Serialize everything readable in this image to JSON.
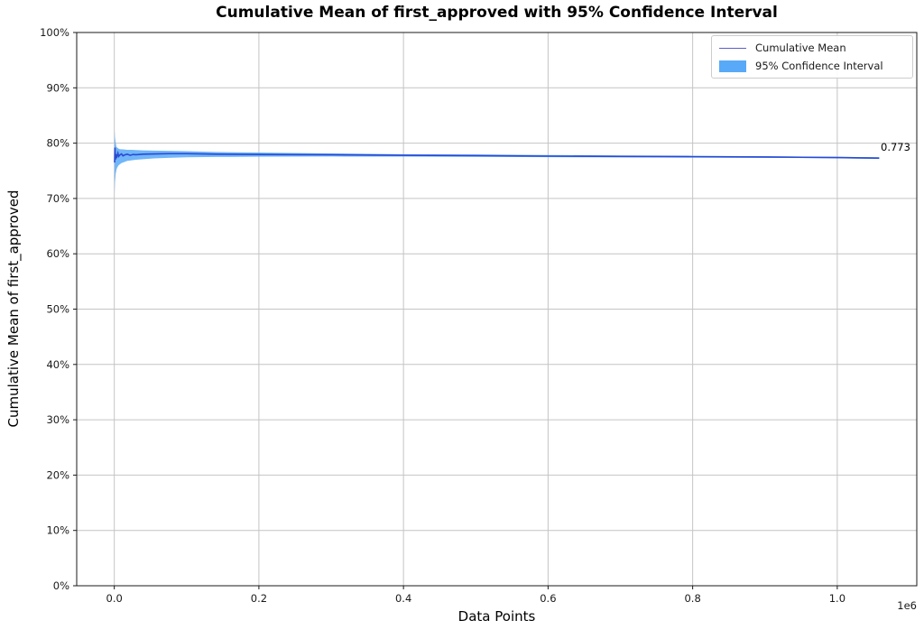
{
  "chart": {
    "title": "Cumulative Mean of first_approved with 95% Confidence Interval",
    "xlabel": "Data Points",
    "ylabel": "Cumulative Mean of first_approved",
    "offset_text": "1e6",
    "annotation": "0.773",
    "legend": {
      "mean_label": "Cumulative Mean",
      "ci_label": "95% Confidence Interval"
    }
  },
  "colors": {
    "mean_line": "#2a4ad4",
    "ci_fill": "#58a9f7",
    "grid": "#c4c4c4",
    "spine": "#1a1a1a",
    "tick_label": "#1a1a1a"
  },
  "chart_data": {
    "type": "line",
    "title": "Cumulative Mean of first_approved with 95% Confidence Interval",
    "xlabel": "Data Points",
    "ylabel": "Cumulative Mean of first_approved",
    "x_unit": "millions of data points (axis offset text 1e6)",
    "y_unit": "percent",
    "xlim": [
      -0.052,
      1.11
    ],
    "ylim": [
      0,
      100
    ],
    "grid": true,
    "legend_position": "upper right",
    "legend_entries": [
      "Cumulative Mean",
      "95% Confidence Interval"
    ],
    "x_ticks": [
      {
        "label": "0.0",
        "value": 0.0
      },
      {
        "label": "0.2",
        "value": 0.2
      },
      {
        "label": "0.4",
        "value": 0.4
      },
      {
        "label": "0.6",
        "value": 0.6
      },
      {
        "label": "0.8",
        "value": 0.8
      },
      {
        "label": "1.0",
        "value": 1.0
      }
    ],
    "y_ticks": [
      {
        "label": "0%",
        "value": 0
      },
      {
        "label": "10%",
        "value": 10
      },
      {
        "label": "20%",
        "value": 20
      },
      {
        "label": "30%",
        "value": 30
      },
      {
        "label": "40%",
        "value": 40
      },
      {
        "label": "50%",
        "value": 50
      },
      {
        "label": "60%",
        "value": 60
      },
      {
        "label": "70%",
        "value": 70
      },
      {
        "label": "80%",
        "value": 80
      },
      {
        "label": "90%",
        "value": 90
      },
      {
        "label": "100%",
        "value": 100
      }
    ],
    "annotation": {
      "text": "0.773",
      "x": 1.058,
      "y": 77.3
    },
    "final_value": 0.773,
    "series": [
      {
        "name": "Cumulative Mean",
        "type": "line",
        "x": [
          0.0005,
          0.001,
          0.0015,
          0.002,
          0.003,
          0.004,
          0.005,
          0.006,
          0.008,
          0.01,
          0.012,
          0.014,
          0.018,
          0.022,
          0.026,
          0.03,
          0.04,
          0.055,
          0.075,
          0.1,
          0.14,
          0.2,
          0.3,
          0.4,
          0.5,
          0.6,
          0.7,
          0.8,
          0.9,
          1.0,
          1.058
        ],
        "y_percent": [
          76.5,
          79.2,
          77.0,
          78.0,
          77.3,
          77.8,
          78.2,
          77.6,
          77.9,
          78.05,
          77.7,
          77.85,
          78.0,
          77.8,
          77.95,
          77.9,
          78.0,
          78.05,
          78.1,
          78.1,
          78.0,
          77.95,
          77.9,
          77.8,
          77.75,
          77.65,
          77.6,
          77.55,
          77.5,
          77.4,
          77.3
        ]
      },
      {
        "name": "95% Confidence Interval",
        "type": "band",
        "x": [
          0.0005,
          0.001,
          0.002,
          0.003,
          0.004,
          0.006,
          0.008,
          0.01,
          0.014,
          0.018,
          0.024,
          0.03,
          0.04,
          0.055,
          0.075,
          0.1,
          0.14,
          0.2,
          0.3,
          0.4,
          0.5,
          0.6,
          0.7,
          0.8,
          0.9,
          1.0,
          1.058
        ],
        "upper_percent": [
          82.3,
          81.0,
          80.0,
          79.3,
          79.2,
          79.0,
          78.9,
          78.9,
          78.85,
          78.8,
          78.8,
          78.75,
          78.7,
          78.65,
          78.6,
          78.55,
          78.4,
          78.3,
          78.15,
          78.0,
          77.95,
          77.85,
          77.78,
          77.72,
          77.64,
          77.52,
          77.45
        ],
        "lower_percent": [
          71.0,
          73.0,
          74.5,
          75.2,
          75.6,
          76.0,
          76.2,
          76.4,
          76.6,
          76.8,
          76.9,
          77.0,
          77.1,
          77.25,
          77.35,
          77.45,
          77.5,
          77.55,
          77.58,
          77.56,
          77.52,
          77.46,
          77.42,
          77.38,
          77.34,
          77.26,
          77.15
        ]
      }
    ]
  }
}
